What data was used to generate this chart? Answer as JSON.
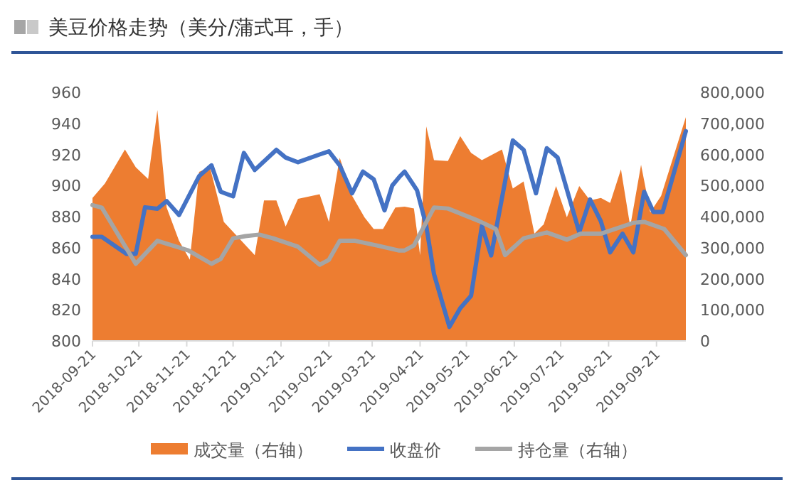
{
  "chart_data": {
    "type": "line",
    "title": "美豆价格走势（美分/蒲式耳，手）",
    "xlim": [
      "2018-09-21",
      "2019-10-10"
    ],
    "xticks": [
      "2018-09-21",
      "2018-10-21",
      "2018-11-21",
      "2018-12-21",
      "2019-01-21",
      "2019-02-21",
      "2019-03-21",
      "2019-04-21",
      "2019-05-21",
      "2019-06-21",
      "2019-07-21",
      "2019-08-21",
      "2019-09-21"
    ],
    "ylim": [
      800,
      960
    ],
    "yticks": [
      800,
      820,
      840,
      860,
      880,
      900,
      920,
      940,
      960
    ],
    "y2lim": [
      0,
      800000
    ],
    "y2ticks": [
      0,
      {
        "value": 100000,
        "label": "100,000"
      },
      {
        "value": 200000,
        "label": "200,000"
      },
      {
        "value": 300000,
        "label": "300,000"
      },
      {
        "value": 400000,
        "label": "400,000"
      },
      {
        "value": 500000,
        "label": "500,000"
      },
      {
        "value": 600000,
        "label": "600,000"
      },
      {
        "value": 700000,
        "label": "700,000"
      },
      {
        "value": 800000,
        "label": "800,000"
      }
    ],
    "legend": "bottom",
    "line_style": "solid",
    "series": [
      {
        "name": "成交量（右轴）",
        "type": "area",
        "axis": "y2",
        "color": "#ed7d31",
        "x": [
          "2018-09-21",
          "2018-09-29",
          "2018-10-12",
          "2018-10-19",
          "2018-10-27",
          "2018-11-02",
          "2018-11-08",
          "2018-11-16",
          "2018-11-23",
          "2018-11-29",
          "2018-12-06",
          "2018-12-15",
          "2019-01-04",
          "2019-01-10",
          "2019-01-18",
          "2019-01-24",
          "2019-02-01",
          "2019-02-15",
          "2019-02-21",
          "2019-02-28",
          "2019-03-08",
          "2019-03-16",
          "2019-03-22",
          "2019-03-28",
          "2019-04-05",
          "2019-04-11",
          "2019-04-17",
          "2019-04-21",
          "2019-04-25",
          "2019-04-30",
          "2019-05-09",
          "2019-05-17",
          "2019-05-24",
          "2019-05-31",
          "2019-06-13",
          "2019-06-20",
          "2019-06-27",
          "2019-07-04",
          "2019-07-10",
          "2019-07-18",
          "2019-07-25",
          "2019-08-02",
          "2019-08-09",
          "2019-08-16",
          "2019-08-22",
          "2019-08-29",
          "2019-09-04",
          "2019-09-11",
          "2019-09-17",
          "2019-09-24",
          "2019-10-10"
        ],
        "values": [
          460000,
          506000,
          616000,
          559000,
          521000,
          743000,
          429000,
          322000,
          261000,
          544000,
          559000,
          383000,
          276000,
          452000,
          452000,
          368000,
          457000,
          472000,
          383000,
          590000,
          467000,
          398000,
          360000,
          360000,
          429000,
          432000,
          426000,
          276000,
          690000,
          582000,
          579000,
          659000,
          605000,
          582000,
          616000,
          490000,
          513000,
          345000,
          375000,
          498000,
          398000,
          498000,
          452000,
          460000,
          444000,
          552000,
          368000,
          567000,
          414000,
          467000,
          720000
        ]
      },
      {
        "name": "收盘价",
        "color": "#4472c4",
        "x": [
          "2018-09-21",
          "2018-09-27",
          "2018-10-13",
          "2018-10-19",
          "2018-10-25",
          "2018-11-02",
          "2018-11-08",
          "2018-11-16",
          "2018-11-29",
          "2018-12-07",
          "2018-12-13",
          "2018-12-21",
          "2018-12-28",
          "2019-01-04",
          "2019-01-18",
          "2019-01-24",
          "2019-02-01",
          "2019-02-15",
          "2019-02-21",
          "2019-02-28",
          "2019-03-08",
          "2019-03-15",
          "2019-03-22",
          "2019-03-29",
          "2019-04-03",
          "2019-04-08",
          "2019-04-11",
          "2019-04-19",
          "2019-04-25",
          "2019-04-30",
          "2019-05-10",
          "2019-05-17",
          "2019-05-24",
          "2019-05-31",
          "2019-06-06",
          "2019-06-20",
          "2019-06-27",
          "2019-07-05",
          "2019-07-12",
          "2019-07-19",
          "2019-08-02",
          "2019-08-09",
          "2019-08-16",
          "2019-08-22",
          "2019-08-30",
          "2019-09-06",
          "2019-09-13",
          "2019-09-19",
          "2019-09-25",
          "2019-10-10"
        ],
        "values": [
          867,
          867,
          856,
          856,
          886,
          885,
          890,
          881,
          906,
          913,
          896,
          893,
          921,
          910,
          923,
          918,
          915,
          920,
          922,
          913,
          895,
          909,
          904,
          884,
          900,
          906,
          909,
          897,
          874,
          843,
          809,
          821,
          829,
          874,
          855,
          929,
          923,
          895,
          924,
          918,
          870,
          891,
          877,
          857,
          869,
          857,
          896,
          883,
          883,
          935
        ]
      },
      {
        "name": "持仓量（右轴）",
        "type": "line",
        "axis": "y2",
        "color": "#a5a5a5",
        "x": [
          "2018-09-21",
          "2018-09-27",
          "2018-10-19",
          "2018-11-02",
          "2018-11-22",
          "2018-12-07",
          "2018-12-13",
          "2018-12-21",
          "2018-12-29",
          "2019-01-07",
          "2019-01-16",
          "2019-02-01",
          "2019-02-15",
          "2019-02-21",
          "2019-02-28",
          "2019-03-10",
          "2019-03-24",
          "2019-04-07",
          "2019-04-11",
          "2019-04-17",
          "2019-04-30",
          "2019-05-09",
          "2019-05-29",
          "2019-06-09",
          "2019-06-15",
          "2019-06-27",
          "2019-07-12",
          "2019-07-25",
          "2019-08-03",
          "2019-08-16",
          "2019-09-06",
          "2019-09-13",
          "2019-09-26",
          "2019-10-10"
        ],
        "values": [
          437000,
          429000,
          248000,
          322000,
          291000,
          248000,
          264000,
          330000,
          337000,
          342000,
          330000,
          303000,
          245000,
          261000,
          322000,
          322000,
          307000,
          291000,
          291000,
          307000,
          429000,
          426000,
          386000,
          360000,
          276000,
          330000,
          349000,
          326000,
          345000,
          345000,
          380000,
          383000,
          360000,
          276000
        ]
      }
    ]
  }
}
